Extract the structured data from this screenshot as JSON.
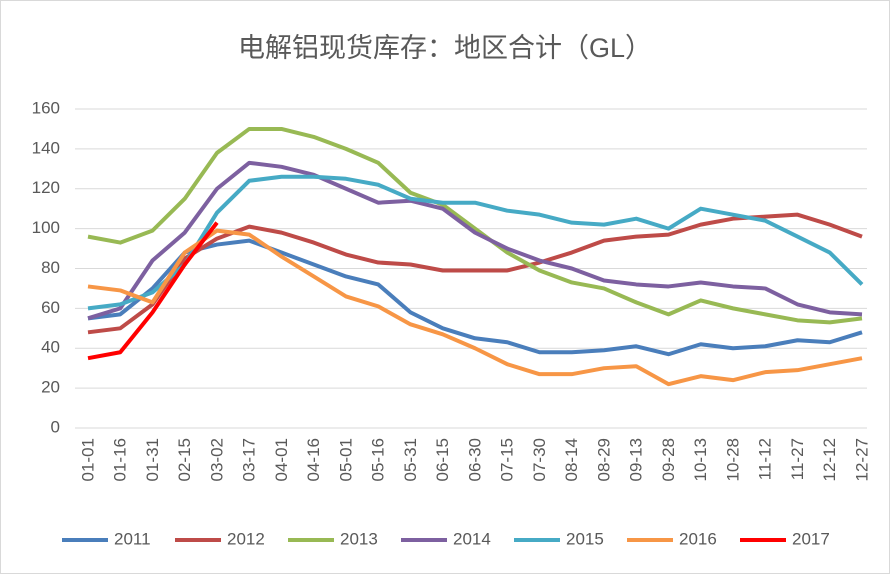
{
  "chart_data": {
    "type": "line",
    "title": "电解铝现货库存：地区合计（GL）",
    "categories": [
      "01-01",
      "01-16",
      "01-31",
      "02-15",
      "03-02",
      "03-17",
      "04-01",
      "04-16",
      "05-01",
      "05-16",
      "05-31",
      "06-15",
      "06-30",
      "07-15",
      "07-30",
      "08-14",
      "08-29",
      "09-13",
      "09-28",
      "10-13",
      "10-28",
      "11-12",
      "11-27",
      "12-12",
      "12-27"
    ],
    "series": [
      {
        "name": "2011",
        "color": "#4a7ebb",
        "values": [
          55,
          57,
          70,
          88,
          92,
          94,
          88,
          82,
          76,
          72,
          58,
          50,
          45,
          43,
          38,
          38,
          39,
          41,
          37,
          42,
          40,
          41,
          44,
          43,
          48
        ]
      },
      {
        "name": "2012",
        "color": "#be4b48",
        "values": [
          48,
          50,
          62,
          85,
          95,
          101,
          98,
          93,
          87,
          83,
          82,
          79,
          79,
          79,
          83,
          88,
          94,
          96,
          97,
          102,
          105,
          106,
          107,
          102,
          96
        ]
      },
      {
        "name": "2013",
        "color": "#98b954",
        "values": [
          96,
          93,
          99,
          115,
          138,
          150,
          150,
          146,
          140,
          133,
          118,
          112,
          100,
          88,
          79,
          73,
          70,
          63,
          57,
          64,
          60,
          57,
          54,
          53,
          55
        ]
      },
      {
        "name": "2014",
        "color": "#7d60a0",
        "values": [
          55,
          60,
          84,
          98,
          120,
          133,
          131,
          127,
          120,
          113,
          114,
          110,
          98,
          90,
          84,
          80,
          74,
          72,
          71,
          73,
          71,
          70,
          62,
          58,
          57
        ]
      },
      {
        "name": "2015",
        "color": "#46aac5",
        "values": [
          60,
          62,
          68,
          82,
          108,
          124,
          126,
          126,
          125,
          122,
          115,
          113,
          113,
          109,
          107,
          103,
          102,
          105,
          100,
          110,
          107,
          104,
          96,
          88,
          72
        ]
      },
      {
        "name": "2016",
        "color": "#f79646",
        "values": [
          71,
          69,
          63,
          88,
          99,
          97,
          86,
          76,
          66,
          61,
          52,
          47,
          40,
          32,
          27,
          27,
          30,
          31,
          22,
          26,
          24,
          28,
          29,
          32,
          35
        ]
      },
      {
        "name": "2017",
        "color": "#ff0000",
        "values": [
          35,
          38,
          58,
          82,
          103,
          null,
          null,
          null,
          null,
          null,
          null,
          null,
          null,
          null,
          null,
          null,
          null,
          null,
          null,
          null,
          null,
          null,
          null,
          null,
          null
        ]
      }
    ],
    "ylim": [
      0,
      160
    ],
    "yticks": [
      0,
      20,
      40,
      60,
      80,
      100,
      120,
      140,
      160
    ],
    "grid": true,
    "legend": "bottom"
  }
}
